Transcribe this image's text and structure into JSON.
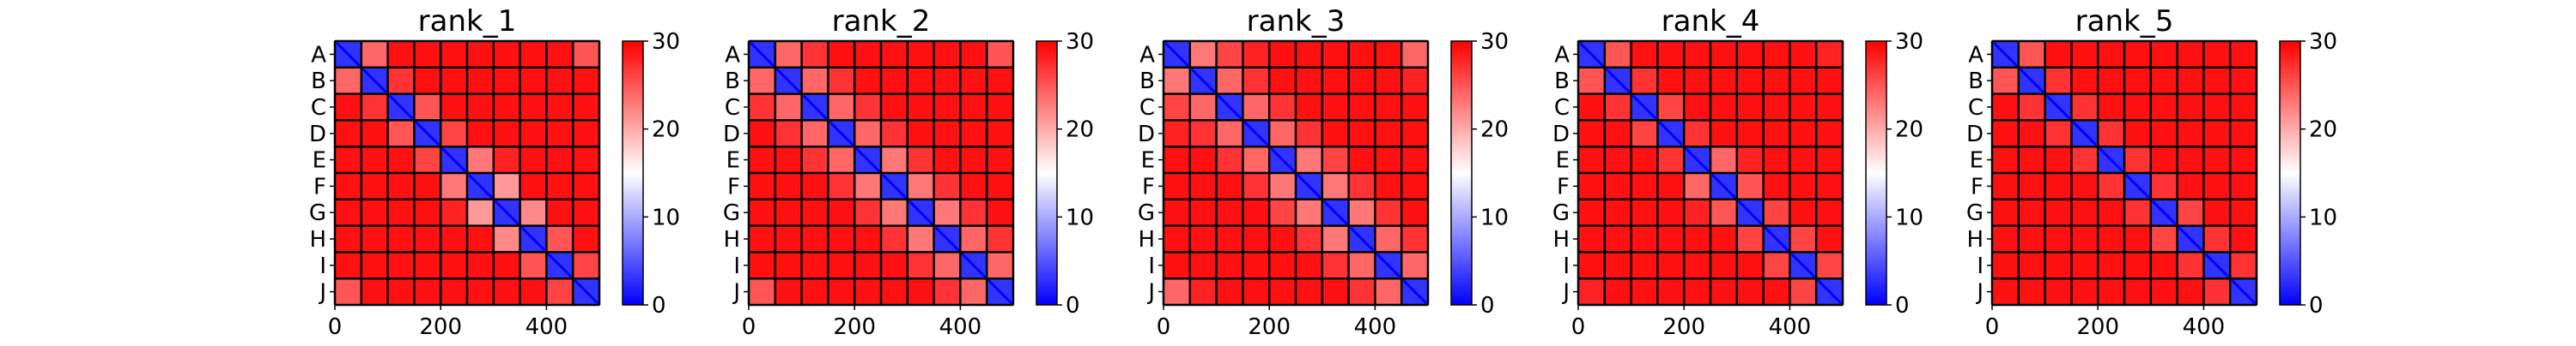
{
  "chart_data": {
    "type": "heatmap",
    "colormap": {
      "name": "bwr",
      "colors": [
        "#0000ff",
        "#ffffff",
        "#ff0000"
      ],
      "vmin": 0,
      "vmax": 30,
      "ticks": [
        "0",
        "10",
        "20",
        "30"
      ]
    },
    "xlim": [
      0,
      500
    ],
    "x_ticks": [
      "0",
      "200",
      "400"
    ],
    "row_labels": [
      "A",
      "B",
      "C",
      "D",
      "E",
      "F",
      "G",
      "H",
      "I",
      "J"
    ],
    "block_size": 50,
    "grid": true,
    "diagonal_value": 0,
    "panels": [
      {
        "title": "rank_1",
        "block_means": [
          [
            3,
            24,
            29,
            29,
            29,
            29,
            29,
            29,
            29,
            25
          ],
          [
            24,
            3,
            27,
            29,
            29,
            29,
            29,
            29,
            29,
            29
          ],
          [
            29,
            27,
            3,
            25,
            29,
            29,
            29,
            29,
            29,
            29
          ],
          [
            29,
            29,
            25,
            3,
            26,
            29,
            29,
            29,
            29,
            29
          ],
          [
            29,
            29,
            29,
            26,
            3,
            23,
            28,
            29,
            29,
            29
          ],
          [
            29,
            29,
            29,
            29,
            23,
            3,
            21,
            29,
            29,
            29
          ],
          [
            29,
            29,
            29,
            29,
            28,
            21,
            3,
            22,
            29,
            29
          ],
          [
            29,
            29,
            29,
            29,
            29,
            29,
            22,
            3,
            25,
            29
          ],
          [
            29,
            29,
            29,
            29,
            29,
            29,
            29,
            25,
            3,
            26
          ],
          [
            25,
            29,
            29,
            29,
            29,
            29,
            29,
            29,
            26,
            3
          ]
        ]
      },
      {
        "title": "rank_2",
        "block_means": [
          [
            3,
            24,
            27,
            29,
            29,
            29,
            29,
            29,
            29,
            25
          ],
          [
            24,
            3,
            24,
            27,
            29,
            29,
            29,
            29,
            29,
            29
          ],
          [
            27,
            24,
            3,
            24,
            27,
            29,
            29,
            29,
            29,
            29
          ],
          [
            29,
            27,
            24,
            3,
            24,
            27,
            29,
            29,
            29,
            29
          ],
          [
            29,
            29,
            27,
            24,
            3,
            23,
            27,
            29,
            29,
            29
          ],
          [
            29,
            29,
            29,
            27,
            23,
            3,
            23,
            27,
            29,
            29
          ],
          [
            29,
            29,
            29,
            29,
            27,
            23,
            3,
            23,
            27,
            29
          ],
          [
            29,
            29,
            29,
            29,
            29,
            27,
            23,
            3,
            24,
            27
          ],
          [
            29,
            29,
            29,
            29,
            29,
            29,
            27,
            24,
            3,
            24
          ],
          [
            25,
            29,
            29,
            29,
            29,
            29,
            29,
            27,
            24,
            3
          ]
        ]
      },
      {
        "title": "rank_3",
        "block_means": [
          [
            3,
            23,
            26,
            28,
            29,
            29,
            29,
            29,
            29,
            24
          ],
          [
            23,
            3,
            24,
            27,
            29,
            29,
            29,
            29,
            29,
            28
          ],
          [
            26,
            24,
            3,
            24,
            27,
            29,
            29,
            29,
            29,
            29
          ],
          [
            28,
            27,
            24,
            3,
            24,
            27,
            29,
            29,
            29,
            29
          ],
          [
            29,
            29,
            27,
            24,
            3,
            23,
            26,
            29,
            29,
            29
          ],
          [
            29,
            29,
            29,
            27,
            23,
            3,
            23,
            27,
            29,
            29
          ],
          [
            29,
            29,
            29,
            29,
            26,
            23,
            3,
            23,
            27,
            29
          ],
          [
            29,
            29,
            29,
            29,
            29,
            27,
            23,
            3,
            24,
            27
          ],
          [
            29,
            29,
            29,
            29,
            29,
            29,
            27,
            24,
            3,
            24
          ],
          [
            24,
            28,
            29,
            29,
            29,
            29,
            29,
            27,
            24,
            3
          ]
        ]
      },
      {
        "title": "rank_4",
        "block_means": [
          [
            3,
            25,
            29,
            29,
            29,
            29,
            29,
            29,
            29,
            28
          ],
          [
            25,
            3,
            27,
            29,
            29,
            29,
            29,
            29,
            29,
            29
          ],
          [
            29,
            27,
            3,
            26,
            29,
            29,
            29,
            29,
            29,
            29
          ],
          [
            29,
            29,
            26,
            3,
            27,
            29,
            29,
            29,
            29,
            29
          ],
          [
            29,
            29,
            29,
            27,
            3,
            24,
            28,
            29,
            29,
            29
          ],
          [
            29,
            29,
            29,
            29,
            24,
            3,
            25,
            29,
            29,
            29
          ],
          [
            29,
            29,
            29,
            29,
            28,
            25,
            3,
            26,
            29,
            29
          ],
          [
            29,
            29,
            29,
            29,
            29,
            29,
            26,
            3,
            26,
            29
          ],
          [
            29,
            29,
            29,
            29,
            29,
            29,
            29,
            26,
            3,
            26
          ],
          [
            28,
            29,
            29,
            29,
            29,
            29,
            29,
            29,
            26,
            3
          ]
        ]
      },
      {
        "title": "rank_5",
        "block_means": [
          [
            3,
            25,
            29,
            29,
            29,
            29,
            29,
            29,
            29,
            29
          ],
          [
            25,
            3,
            27,
            29,
            29,
            29,
            29,
            29,
            29,
            29
          ],
          [
            29,
            27,
            3,
            27,
            29,
            29,
            29,
            29,
            29,
            29
          ],
          [
            29,
            29,
            27,
            3,
            27,
            29,
            29,
            29,
            29,
            29
          ],
          [
            29,
            29,
            29,
            27,
            3,
            27,
            29,
            29,
            29,
            29
          ],
          [
            29,
            29,
            29,
            29,
            27,
            3,
            27,
            29,
            29,
            29
          ],
          [
            29,
            29,
            29,
            29,
            29,
            27,
            3,
            26,
            29,
            29
          ],
          [
            29,
            29,
            29,
            29,
            29,
            29,
            26,
            3,
            27,
            29
          ],
          [
            29,
            29,
            29,
            29,
            29,
            29,
            29,
            27,
            3,
            27
          ],
          [
            29,
            29,
            29,
            29,
            29,
            29,
            29,
            29,
            27,
            3
          ]
        ]
      }
    ]
  }
}
